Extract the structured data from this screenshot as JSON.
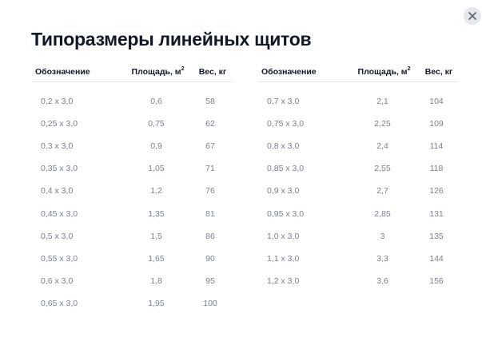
{
  "dialog": {
    "title": "Типоразмеры линейных щитов",
    "close_icon": "close-icon"
  },
  "columns": {
    "designation": "Обозначение",
    "area": "Площадь, м",
    "area_unit_sup": "2",
    "weight": "Вес, кг"
  },
  "left_table": [
    {
      "designation": "0,2 х 3,0",
      "area": "0,6",
      "weight": "58"
    },
    {
      "designation": "0,25 х 3,0",
      "area": "0,75",
      "weight": "62"
    },
    {
      "designation": "0,3 х 3,0",
      "area": "0,9",
      "weight": "67"
    },
    {
      "designation": "0,35 х 3,0",
      "area": "1,05",
      "weight": "71"
    },
    {
      "designation": "0,4 х 3,0",
      "area": "1,2",
      "weight": "76"
    },
    {
      "designation": "0,45 х 3,0",
      "area": "1,35",
      "weight": "81"
    },
    {
      "designation": "0,5 х 3,0",
      "area": "1,5",
      "weight": "86"
    },
    {
      "designation": "0,55 х 3,0",
      "area": "1,65",
      "weight": "90"
    },
    {
      "designation": "0,6 х 3,0",
      "area": "1,8",
      "weight": "95"
    },
    {
      "designation": "0,65 х 3,0",
      "area": "1,95",
      "weight": "100"
    }
  ],
  "right_table": [
    {
      "designation": "0,7 х 3,0",
      "area": "2,1",
      "weight": "104"
    },
    {
      "designation": "0,75 х 3,0",
      "area": "2,25",
      "weight": "109"
    },
    {
      "designation": "0,8 х 3,0",
      "area": "2,4",
      "weight": "114"
    },
    {
      "designation": "0,85 х 3,0",
      "area": "2,55",
      "weight": "118"
    },
    {
      "designation": "0,9 х 3,0",
      "area": "2,7",
      "weight": "126"
    },
    {
      "designation": "0,95 х 3,0",
      "area": "2,85",
      "weight": "131"
    },
    {
      "designation": "1,0 х 3,0",
      "area": "3",
      "weight": "135"
    },
    {
      "designation": "1,1 х 3,0",
      "area": "3,3",
      "weight": "144"
    },
    {
      "designation": "1,2 х 3,0",
      "area": "3,6",
      "weight": "156"
    }
  ]
}
